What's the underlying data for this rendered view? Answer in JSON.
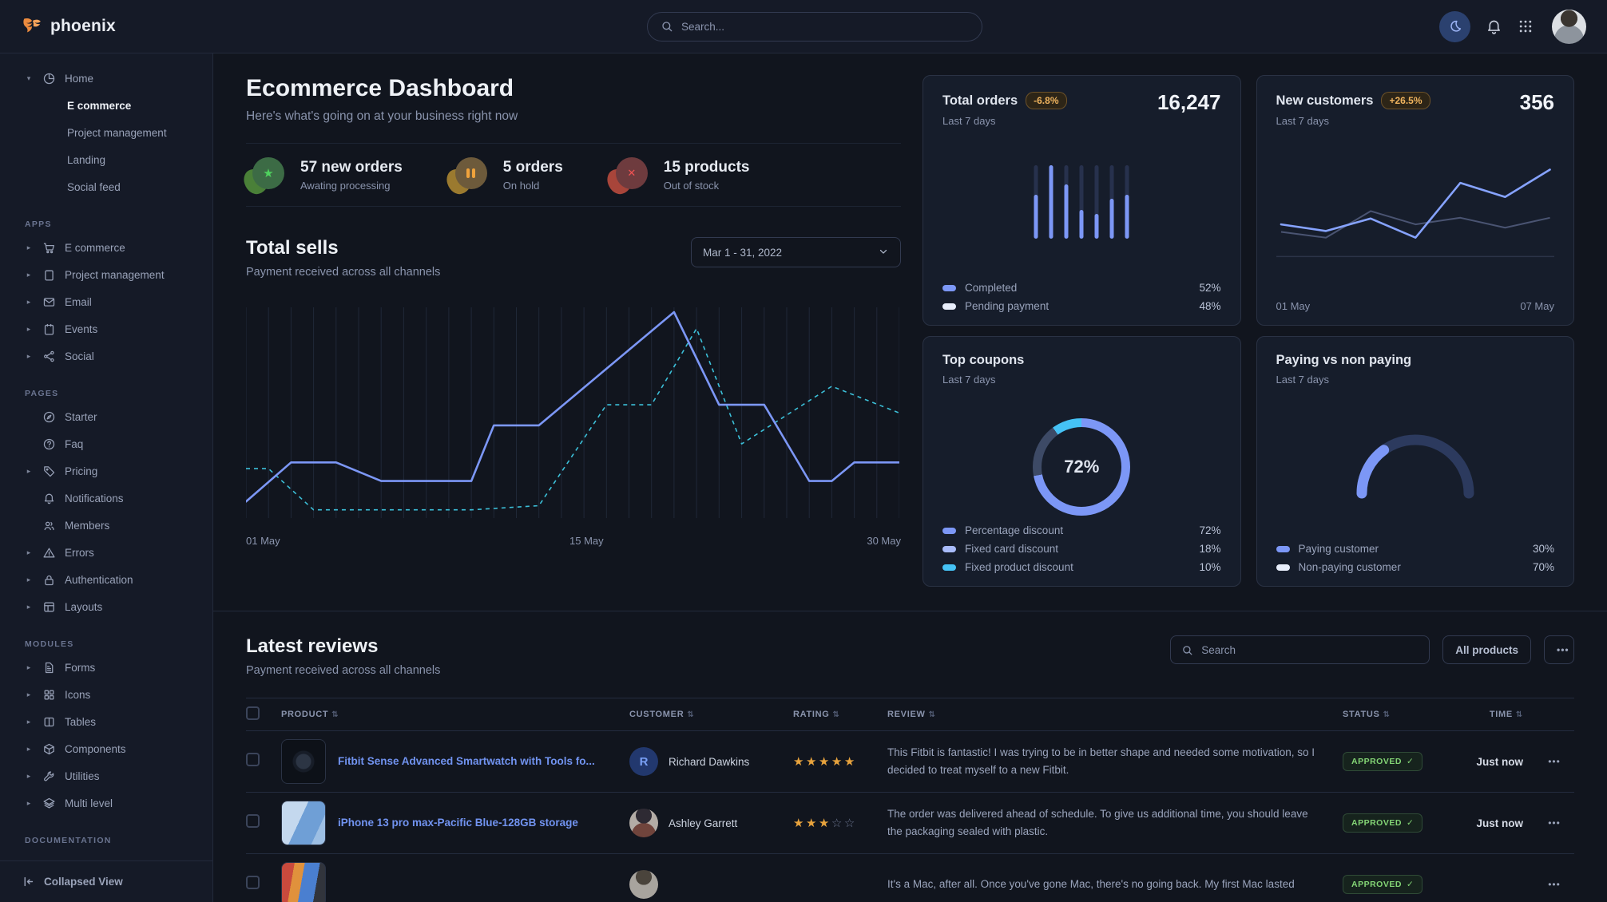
{
  "navbar": {
    "brand": "phoenix",
    "search_placeholder": "Search..."
  },
  "sidebar": {
    "home_label": "Home",
    "home_children": [
      {
        "label": "E commerce"
      },
      {
        "label": "Project management"
      },
      {
        "label": "Landing"
      },
      {
        "label": "Social feed"
      }
    ],
    "sections": [
      {
        "title": "APPS",
        "items": [
          {
            "label": "E commerce"
          },
          {
            "label": "Project management"
          },
          {
            "label": "Email"
          },
          {
            "label": "Events"
          },
          {
            "label": "Social"
          }
        ]
      },
      {
        "title": "PAGES",
        "items": [
          {
            "label": "Starter"
          },
          {
            "label": "Faq"
          },
          {
            "label": "Pricing"
          },
          {
            "label": "Notifications"
          },
          {
            "label": "Members"
          },
          {
            "label": "Errors"
          },
          {
            "label": "Authentication"
          },
          {
            "label": "Layouts"
          }
        ]
      },
      {
        "title": "MODULES",
        "items": [
          {
            "label": "Forms"
          },
          {
            "label": "Icons"
          },
          {
            "label": "Tables"
          },
          {
            "label": "Components"
          },
          {
            "label": "Utilities"
          },
          {
            "label": "Multi level"
          }
        ]
      },
      {
        "title": "DOCUMENTATION",
        "items": []
      }
    ],
    "footer_label": "Collapsed View"
  },
  "page": {
    "title": "Ecommerce Dashboard",
    "subtitle": "Here's what's going on at your business right now"
  },
  "stats": [
    {
      "value_label": "57 new orders",
      "sub": "Awating processing"
    },
    {
      "value_label": "5 orders",
      "sub": "On hold"
    },
    {
      "value_label": "15 products",
      "sub": "Out of stock"
    }
  ],
  "total_sells": {
    "title": "Total sells",
    "subtitle": "Payment received across all channels",
    "date_range": "Mar 1 - 31, 2022",
    "xticks": [
      "01 May",
      "15 May",
      "30 May"
    ],
    "chart": {
      "type": "line",
      "x_range": [
        1,
        30
      ],
      "y_range": [
        0,
        100
      ],
      "series": [
        {
          "name": "solid",
          "points": [
            [
              1,
              8
            ],
            [
              3,
              27
            ],
            [
              5,
              27
            ],
            [
              7,
              18
            ],
            [
              11,
              18
            ],
            [
              12,
              45
            ],
            [
              14,
              45
            ],
            [
              20,
              100
            ],
            [
              22,
              55
            ],
            [
              24,
              55
            ],
            [
              26,
              18
            ],
            [
              27,
              18
            ],
            [
              28,
              27
            ],
            [
              30,
              27
            ]
          ]
        },
        {
          "name": "dashed",
          "points": [
            [
              1,
              24
            ],
            [
              2,
              24
            ],
            [
              4,
              4
            ],
            [
              11,
              4
            ],
            [
              14,
              6
            ],
            [
              17,
              55
            ],
            [
              19,
              55
            ],
            [
              21,
              92
            ],
            [
              23,
              36
            ],
            [
              27,
              64
            ],
            [
              30,
              51
            ]
          ]
        }
      ]
    }
  },
  "total_orders": {
    "title": "Total orders",
    "badge": "-6.8%",
    "period": "Last 7 days",
    "value": "16,247",
    "legend": [
      {
        "label": "Completed",
        "value": "52%"
      },
      {
        "label": "Pending payment",
        "value": "48%"
      }
    ],
    "chart": {
      "type": "bar",
      "values": [
        60,
        100,
        74,
        39,
        34,
        54,
        60
      ]
    }
  },
  "new_customers": {
    "title": "New customers",
    "badge": "+26.5%",
    "period": "Last 7 days",
    "value": "356",
    "xticks": [
      "01 May",
      "07 May"
    ],
    "chart": {
      "type": "line",
      "series": [
        {
          "name": "current",
          "values": [
            34,
            26,
            41,
            18,
            84,
            67,
            100
          ]
        },
        {
          "name": "previous",
          "values": [
            25,
            18,
            50,
            34,
            42,
            30,
            42
          ]
        }
      ]
    }
  },
  "top_coupons": {
    "title": "Top coupons",
    "period": "Last 7 days",
    "center_label": "72%",
    "legend": [
      {
        "label": "Percentage discount",
        "value": "72%"
      },
      {
        "label": "Fixed card discount",
        "value": "18%"
      },
      {
        "label": "Fixed product discount",
        "value": "10%"
      }
    ],
    "chart": {
      "type": "donut",
      "segments": [
        72,
        18,
        10
      ]
    }
  },
  "paying": {
    "title": "Paying vs non paying",
    "period": "Last 7 days",
    "legend": [
      {
        "label": "Paying customer",
        "value": "30%"
      },
      {
        "label": "Non-paying customer",
        "value": "70%"
      }
    ],
    "chart": {
      "type": "gauge",
      "value": 30
    }
  },
  "reviews": {
    "title": "Latest reviews",
    "subtitle": "Payment received across all channels",
    "search_placeholder": "Search",
    "filter_label": "All products",
    "columns": [
      "PRODUCT",
      "CUSTOMER",
      "RATING",
      "REVIEW",
      "STATUS",
      "TIME"
    ],
    "rows": [
      {
        "product": "Fitbit Sense Advanced Smartwatch with Tools fo...",
        "customer": "Richard Dawkins",
        "customer_initial": "R",
        "rating": 5,
        "review": "This Fitbit is fantastic! I was trying to be in better shape and needed some motivation, so I decided to treat myself to a new Fitbit.",
        "status": "APPROVED",
        "time": "Just now"
      },
      {
        "product": "iPhone 13 pro max-Pacific Blue-128GB storage",
        "customer": "Ashley Garrett",
        "rating": 3,
        "review": "The order was delivered ahead of schedule. To give us additional time, you should leave the packaging sealed with plastic.",
        "status": "APPROVED",
        "time": "Just now"
      },
      {
        "product": "",
        "customer": "",
        "rating": 0,
        "review": "It's a Mac, after all. Once you've gone Mac, there's no going back. My first Mac lasted",
        "status": "APPROVED",
        "time": ""
      }
    ]
  },
  "colors": {
    "primary_blue": "#7c97f6",
    "teal": "#3cc0d9",
    "cyan": "#45c2f5",
    "warning": "#f0b45e",
    "success": "#83d475"
  }
}
